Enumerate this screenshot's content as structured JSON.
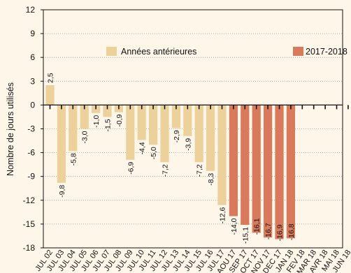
{
  "chart_data": {
    "type": "bar",
    "ylabel": "Nombre de jours utilisés",
    "xlabel": "",
    "ylim": [
      -18,
      12
    ],
    "yticks": [
      12,
      9,
      6,
      3,
      0,
      -3,
      -6,
      -9,
      -12,
      -15,
      -18
    ],
    "legend": {
      "placement": "top",
      "entries": [
        {
          "name": "Années antérieures",
          "color": "#ecd19a"
        },
        {
          "name": "2017-2018",
          "color": "#d97a5c"
        }
      ]
    },
    "categories": [
      "JUL 02",
      "JUL 03",
      "JUL 04",
      "JUL 05",
      "JUL 06",
      "JUL 07",
      "JUL 08",
      "JUL 09",
      "JUL 10",
      "JUL 11",
      "JUL 12",
      "JUL 13",
      "JUL 14",
      "JUL 15",
      "JUL 16",
      "JUL 17",
      "AOU 17",
      "SEP 17",
      "OCT 17",
      "NOV 17",
      "DEC 17",
      "JAN 18",
      "FEV 18",
      "MAR 18",
      "AVR 18",
      "MAI 18",
      "JUN 18"
    ],
    "values": [
      2.5,
      -9.8,
      -5.8,
      -3.0,
      -1.0,
      -1.5,
      -0.9,
      -6.9,
      -4.4,
      -5.0,
      -7.2,
      -2.9,
      -3.9,
      -7.2,
      -8.3,
      -12.6,
      -14.0,
      -15.1,
      -16.1,
      -16.7,
      -16.9,
      -16.8,
      null,
      null,
      null,
      null,
      null
    ],
    "value_labels": [
      "2,5",
      "-9,8",
      "-5,8",
      "-3,0",
      "-1,0",
      "-1,5",
      "-0,9",
      "-6,9",
      "-4,4",
      "-5,0",
      "-7,2",
      "-2,9",
      "-3,9",
      "-7,2",
      "-8,3",
      "-12,6",
      "-14,0",
      "-15,1",
      "-16,1",
      "-16,7",
      "-16,9",
      "-16,8",
      "",
      "",
      "",
      "",
      ""
    ],
    "series_index": [
      0,
      0,
      0,
      0,
      0,
      0,
      0,
      0,
      0,
      0,
      0,
      0,
      0,
      0,
      0,
      0,
      1,
      1,
      1,
      1,
      1,
      1,
      1,
      1,
      1,
      1,
      1
    ]
  }
}
